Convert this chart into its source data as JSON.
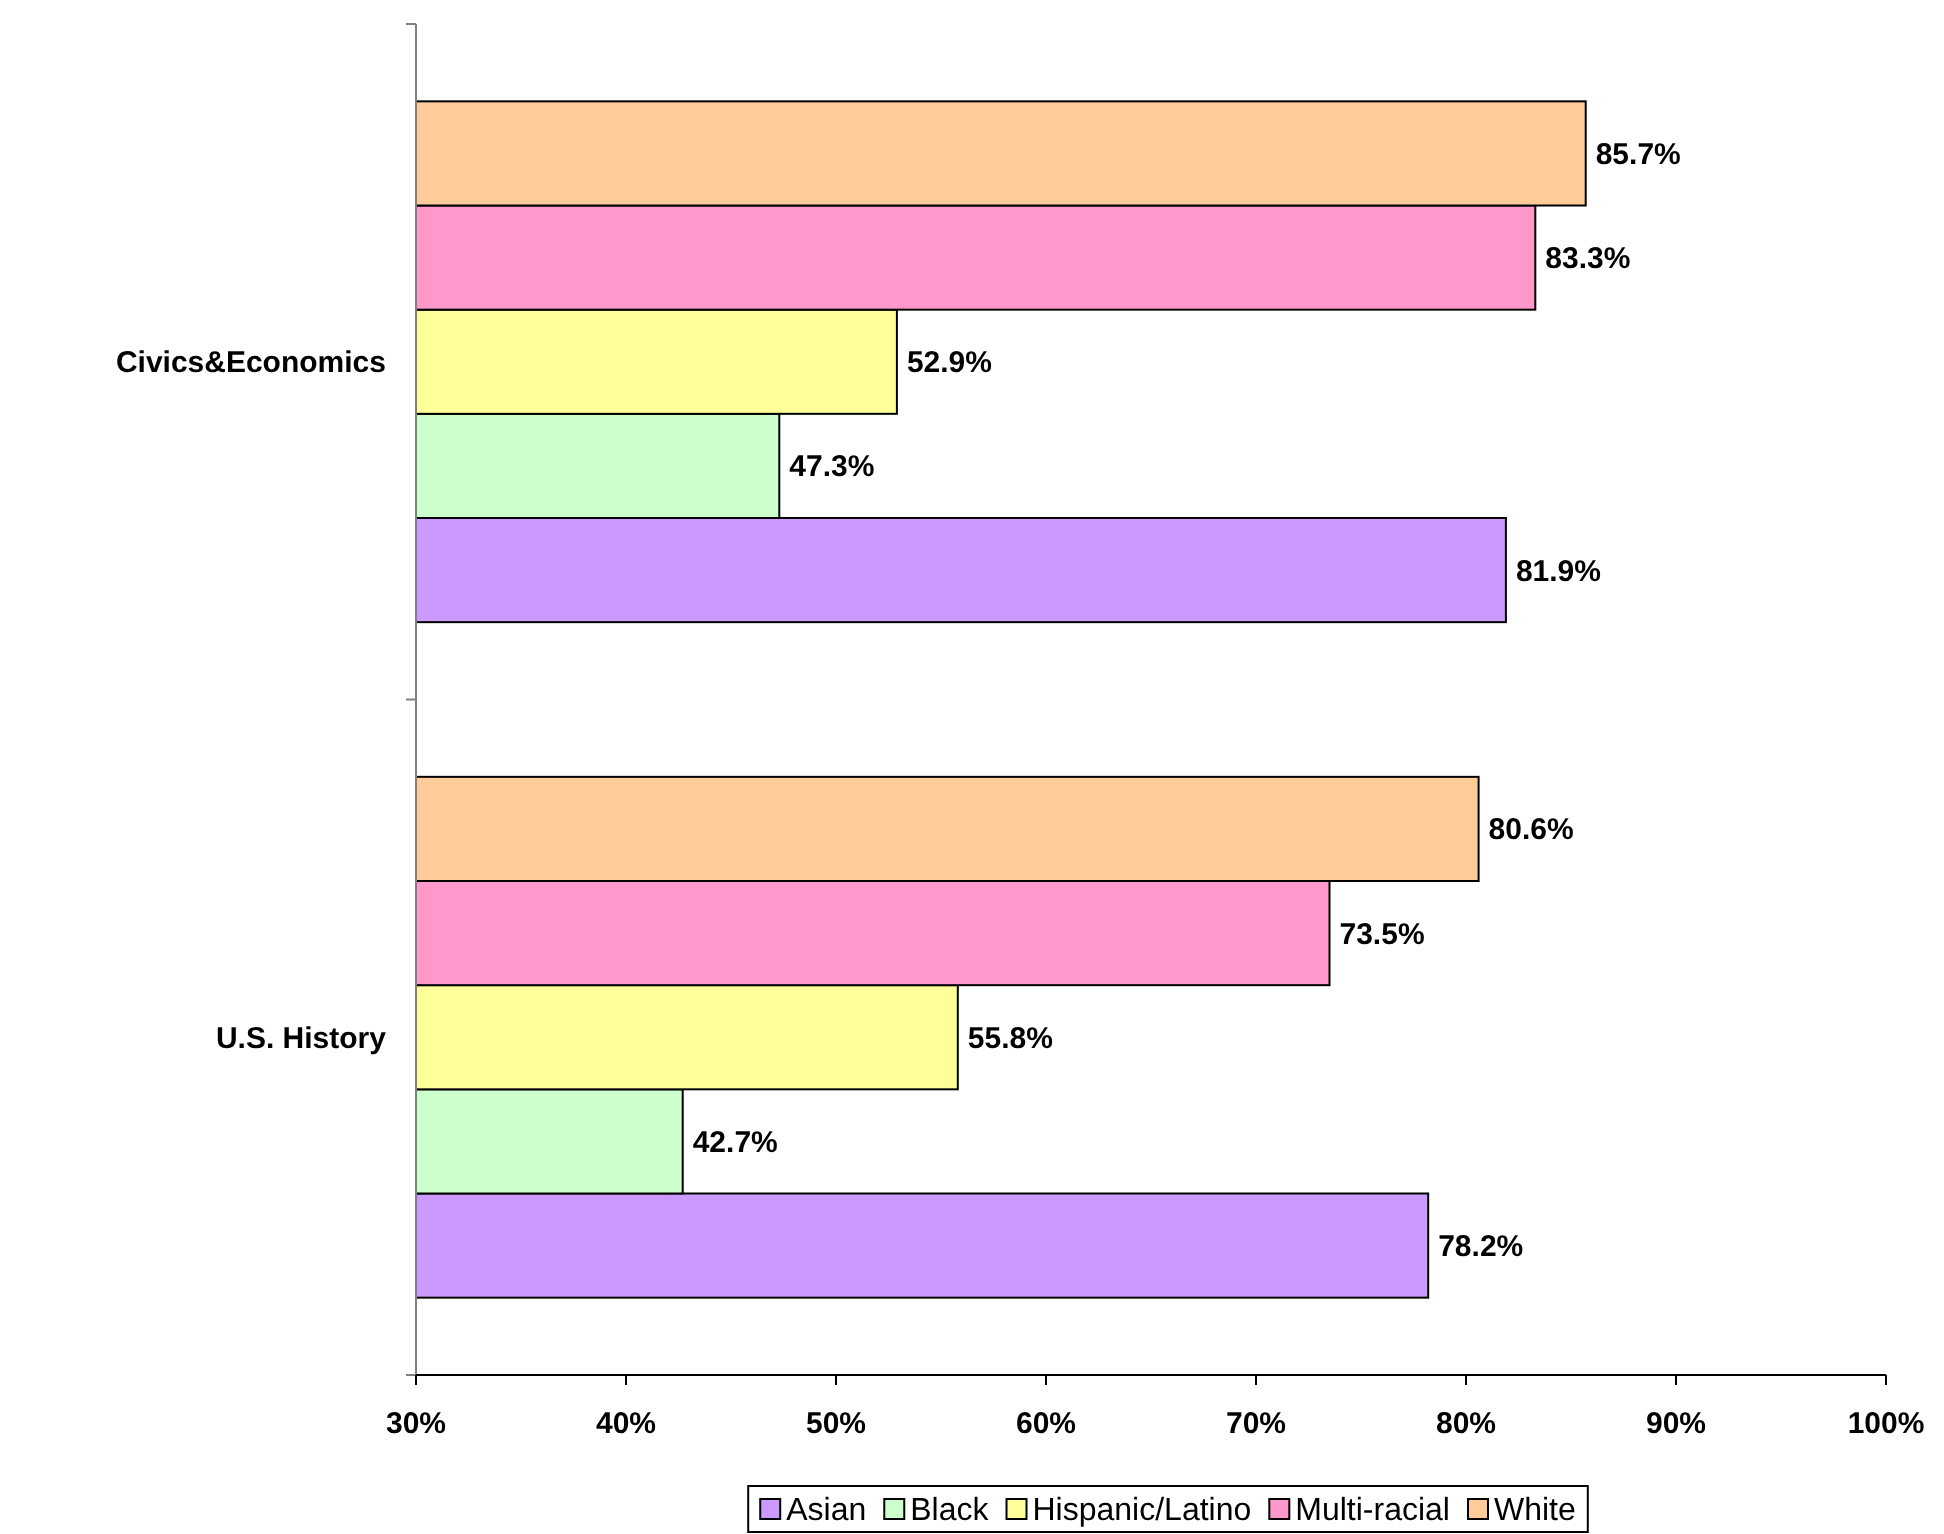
{
  "chart_data": {
    "type": "bar",
    "orientation": "horizontal",
    "categories": [
      "Civics&Economics",
      "U.S. History"
    ],
    "series": [
      {
        "name": "Asian",
        "color": "#cc99ff",
        "values": [
          81.9,
          78.2
        ],
        "value_labels": [
          "81.9%",
          "78.2%"
        ]
      },
      {
        "name": "Black",
        "color": "#ccffcc",
        "values": [
          47.3,
          42.7
        ],
        "value_labels": [
          "47.3%",
          "42.7%"
        ]
      },
      {
        "name": "Hispanic/Latino",
        "color": "#ffff99",
        "values": [
          52.9,
          55.8
        ],
        "value_labels": [
          "52.9%",
          "55.8%"
        ]
      },
      {
        "name": "Multi-racial",
        "color": "#ff99cc",
        "values": [
          83.3,
          73.5
        ],
        "value_labels": [
          "83.3%",
          "73.5%"
        ]
      },
      {
        "name": "White",
        "color": "#ffcc99",
        "values": [
          85.7,
          80.6
        ],
        "value_labels": [
          "85.7%",
          "80.6%"
        ]
      }
    ],
    "xlim": [
      30,
      100
    ],
    "xticks": [
      {
        "value": 30,
        "label": "30%"
      },
      {
        "value": 40,
        "label": "40%"
      },
      {
        "value": 50,
        "label": "50%"
      },
      {
        "value": 60,
        "label": "60%"
      },
      {
        "value": 70,
        "label": "70%"
      },
      {
        "value": 80,
        "label": "80%"
      },
      {
        "value": 90,
        "label": "90%"
      },
      {
        "value": 100,
        "label": "100%"
      }
    ],
    "legend": "bottom"
  }
}
